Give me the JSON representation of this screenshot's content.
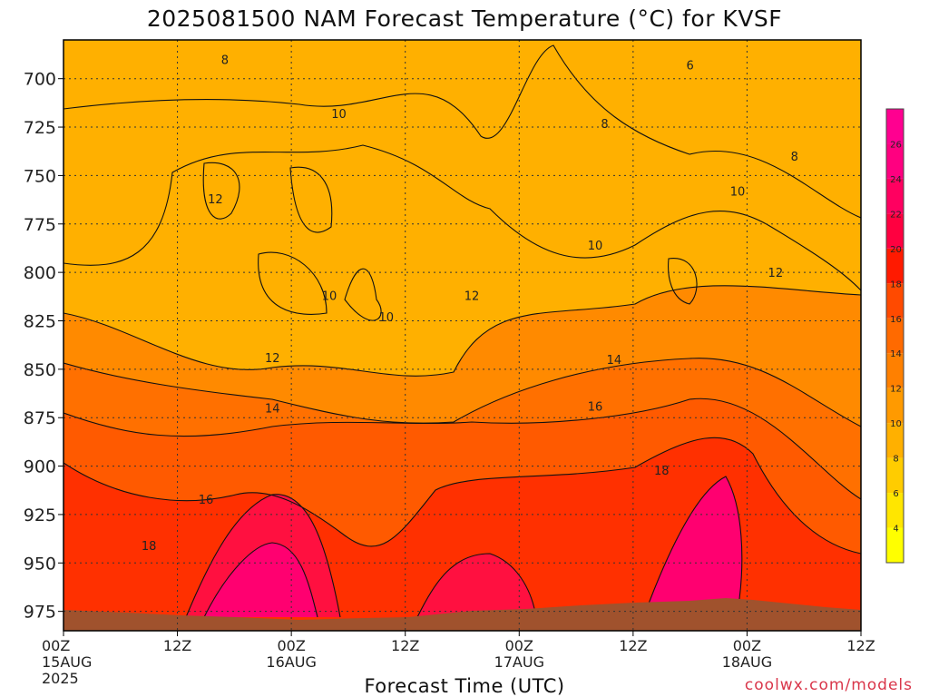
{
  "title": "2025081500 NAM Forecast Temperature (°C) for KVSF",
  "xlabel": "Forecast Time (UTC)",
  "credit": "coolwx.com/models",
  "chart_data": {
    "type": "heatmap",
    "title": "2025081500 NAM Forecast Temperature (°C) for KVSF",
    "xlabel": "Forecast Time (UTC)",
    "ylabel": "",
    "xlim_hours": [
      0,
      84
    ],
    "ylim_hpa": [
      985,
      680
    ],
    "y_reversed": true,
    "x_ticks": [
      {
        "hour": 0,
        "lines": [
          "00Z",
          "15AUG",
          "2025"
        ]
      },
      {
        "hour": 12,
        "lines": [
          "12Z"
        ]
      },
      {
        "hour": 24,
        "lines": [
          "00Z",
          "16AUG"
        ]
      },
      {
        "hour": 36,
        "lines": [
          "12Z"
        ]
      },
      {
        "hour": 48,
        "lines": [
          "00Z",
          "17AUG"
        ]
      },
      {
        "hour": 60,
        "lines": [
          "12Z"
        ]
      },
      {
        "hour": 72,
        "lines": [
          "00Z",
          "18AUG"
        ]
      },
      {
        "hour": 84,
        "lines": [
          "12Z"
        ]
      }
    ],
    "y_ticks": [
      700,
      725,
      750,
      775,
      800,
      825,
      850,
      875,
      900,
      925,
      950,
      975
    ],
    "grid": true,
    "colorbar": {
      "ticks": [
        4,
        6,
        8,
        10,
        12,
        14,
        16,
        18,
        20,
        22,
        24,
        26
      ],
      "colors": [
        "#ffff00",
        "#ffe600",
        "#ffcc00",
        "#ffb000",
        "#ff9a00",
        "#ff8000",
        "#ff6a00",
        "#ff4a00",
        "#ff1a00",
        "#ff0040",
        "#ff0060",
        "#ff0080",
        "#ff0090"
      ],
      "placement": "right"
    },
    "contour_labels": [
      {
        "text": "8",
        "hour": 17.0,
        "p": 690
      },
      {
        "text": "6",
        "hour": 66.0,
        "p": 693
      },
      {
        "text": "8",
        "hour": 57.0,
        "p": 723
      },
      {
        "text": "8",
        "hour": 77.0,
        "p": 740
      },
      {
        "text": "10",
        "hour": 29.0,
        "p": 718
      },
      {
        "text": "10",
        "hour": 71.0,
        "p": 758
      },
      {
        "text": "10",
        "hour": 56.0,
        "p": 786
      },
      {
        "text": "10",
        "hour": 28.0,
        "p": 812
      },
      {
        "text": "10",
        "hour": 34.0,
        "p": 823
      },
      {
        "text": "12",
        "hour": 16.0,
        "p": 762
      },
      {
        "text": "12",
        "hour": 43.0,
        "p": 812
      },
      {
        "text": "12",
        "hour": 75.0,
        "p": 800
      },
      {
        "text": "12",
        "hour": 22.0,
        "p": 844
      },
      {
        "text": "14",
        "hour": 58.0,
        "p": 845
      },
      {
        "text": "14",
        "hour": 22.0,
        "p": 870
      },
      {
        "text": "16",
        "hour": 56.0,
        "p": 869
      },
      {
        "text": "16",
        "hour": 15.0,
        "p": 917
      },
      {
        "text": "18",
        "hour": 9.0,
        "p": 941
      },
      {
        "text": "18",
        "hour": 63.0,
        "p": 902
      }
    ]
  }
}
